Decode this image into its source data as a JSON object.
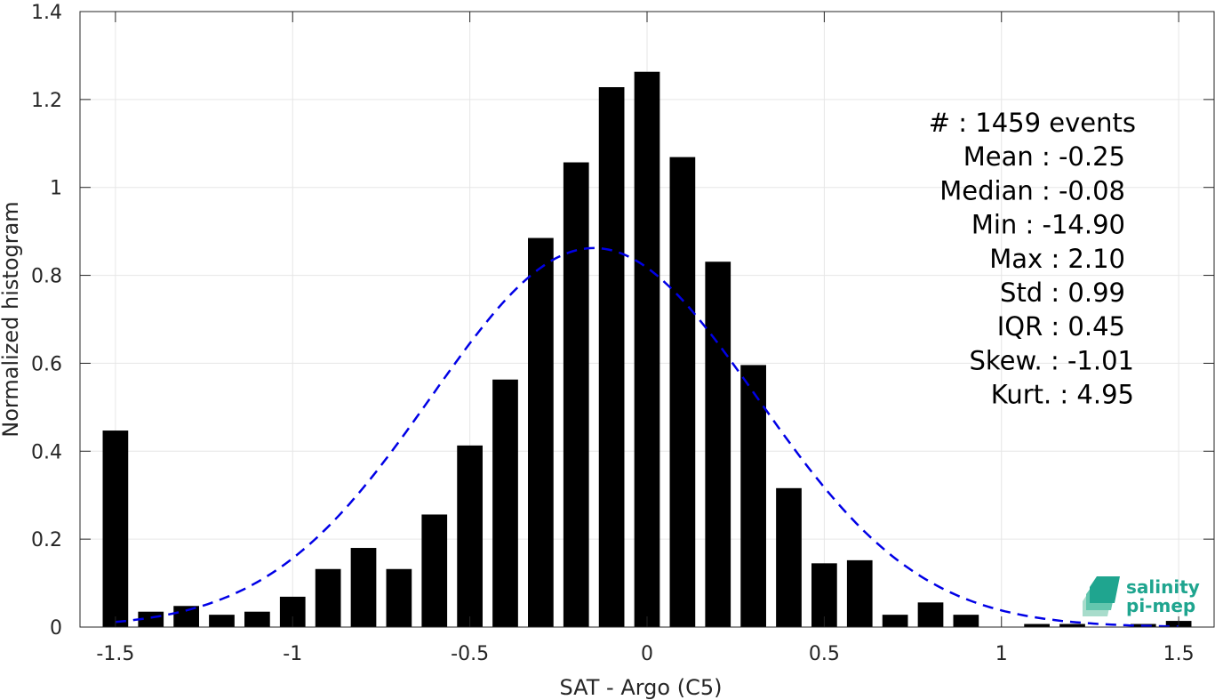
{
  "chart_data": {
    "type": "bar",
    "xlabel": "SAT - Argo (C5)",
    "ylabel": "Normalized histogram",
    "xlim": [
      -1.6,
      1.6
    ],
    "ylim": [
      0,
      1.4
    ],
    "xticks": [
      -1.5,
      -1,
      -0.5,
      0,
      0.5,
      1,
      1.5
    ],
    "xtick_labels": [
      "-1.5",
      "-1",
      "-0.5",
      "0",
      "0.5",
      "1",
      "1.5"
    ],
    "yticks": [
      0,
      0.2,
      0.4,
      0.6,
      0.8,
      1,
      1.2,
      1.4
    ],
    "ytick_labels": [
      "0",
      "0.2",
      "0.4",
      "0.6",
      "0.8",
      "1",
      "1.2",
      "1.4"
    ],
    "grid": true,
    "bar_color": "#000000",
    "bars": {
      "x": [
        -1.5,
        -1.4,
        -1.3,
        -1.2,
        -1.1,
        -1.0,
        -0.9,
        -0.8,
        -0.7,
        -0.6,
        -0.5,
        -0.4,
        -0.3,
        -0.2,
        -0.1,
        0.0,
        0.1,
        0.2,
        0.3,
        0.4,
        0.5,
        0.6,
        0.7,
        0.8,
        0.9,
        1.0,
        1.1,
        1.2,
        1.3,
        1.4,
        1.5
      ],
      "values": [
        0.447,
        0.035,
        0.048,
        0.028,
        0.035,
        0.069,
        0.132,
        0.18,
        0.132,
        0.256,
        0.413,
        0.563,
        0.885,
        1.057,
        1.228,
        1.263,
        1.069,
        0.831,
        0.596,
        0.316,
        0.145,
        0.152,
        0.028,
        0.056,
        0.028,
        0.0,
        0.007,
        0.007,
        0.0,
        0.007,
        0.014
      ]
    },
    "fit_curve": {
      "style": "dashed",
      "color": "#0000e6",
      "distribution": "normal",
      "mean": -0.15,
      "std": 0.46,
      "peak": 0.862,
      "x_range": [
        -1.5,
        1.5
      ]
    },
    "stats_lines": [
      "#  : 1459 events",
      "Mean : -0.25",
      "Median : -0.08",
      "Min : -14.90",
      "Max : 2.10",
      "Std : 0.99",
      "IQR : 0.45",
      "Skew. : -1.01",
      "Kurt. : 4.95"
    ]
  },
  "logo": {
    "line1": "salinity",
    "line2": "pi-mep",
    "colors": [
      "#1fa58f",
      "#63c6ae",
      "#a8dccb"
    ]
  }
}
